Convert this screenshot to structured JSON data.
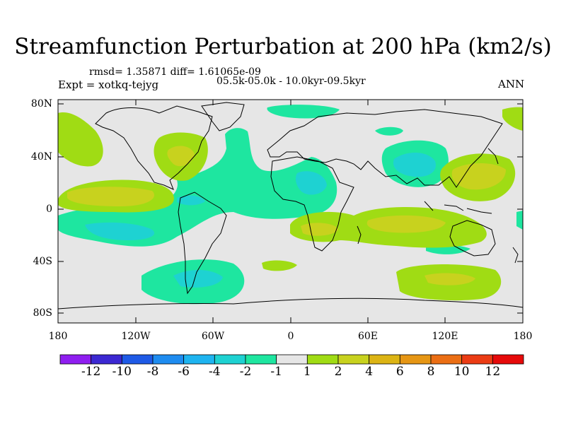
{
  "title": "Streamfunction Perturbation at 200 hPa (km2/s)",
  "stats": "rmsd= 1.35871 diff= 1.61065e-09",
  "experiment": "Expt = xotkq-tejyg",
  "period": "05.5k-05.0k - 10.0kyr-09.5kyr",
  "season": "ANN",
  "lat_labels": [
    "80N",
    "40N",
    "0",
    "40S",
    "80S"
  ],
  "lon_labels": [
    "180",
    "120W",
    "60W",
    "0",
    "60E",
    "120E",
    "180"
  ],
  "colorbar": {
    "colors": [
      "#8f1ef0",
      "#3c28d2",
      "#1e5ae6",
      "#1e8cf0",
      "#1eb4f0",
      "#1ed2d2",
      "#1ee6a0",
      "#e6e6e6",
      "#a0dc14",
      "#c8d21e",
      "#dcb414",
      "#e69614",
      "#eb6e14",
      "#eb3c14",
      "#e60a0a"
    ],
    "labels": [
      "-12",
      "-10",
      "-8",
      "-6",
      "-4",
      "-2",
      "-1",
      "1",
      "2",
      "4",
      "6",
      "8",
      "10",
      "12"
    ]
  },
  "field_colors": {
    "background": "#e6e6e6",
    "neg_weak": "#1ee6a0",
    "neg_mid": "#1ed2d2",
    "pos_weak": "#a0dc14",
    "pos_mid": "#c8d21e",
    "coast": "#000000"
  }
}
